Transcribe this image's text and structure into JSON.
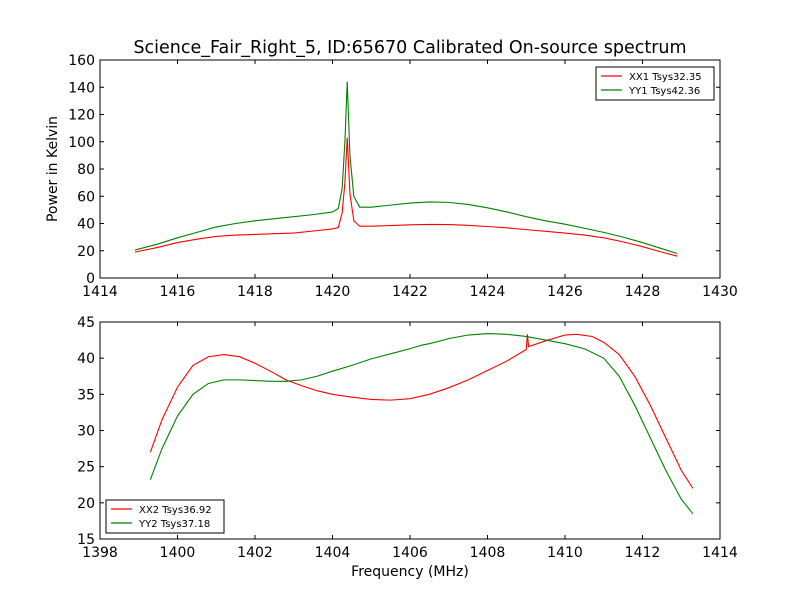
{
  "title": "Science_Fair_Right_5, ID:65670 Calibrated On-source spectrum",
  "chart_data": [
    {
      "type": "line",
      "ylabel": "Power in Kelvin",
      "xlabel": "",
      "xlim": [
        1414,
        1430
      ],
      "ylim": [
        0,
        160
      ],
      "xticks": [
        1414,
        1416,
        1418,
        1420,
        1422,
        1424,
        1426,
        1428,
        1430
      ],
      "yticks": [
        0,
        20,
        40,
        60,
        80,
        100,
        120,
        140,
        160
      ],
      "grid": false,
      "legend_position": "top-right",
      "series": [
        {
          "name": "XX1 Tsys32.35",
          "color": "#ff0000",
          "points": [
            [
              1414.9,
              19
            ],
            [
              1415.5,
              22.5
            ],
            [
              1416,
              26
            ],
            [
              1416.5,
              28.5
            ],
            [
              1417,
              30.5
            ],
            [
              1417.5,
              31.5
            ],
            [
              1418,
              32
            ],
            [
              1418.5,
              32.5
            ],
            [
              1419,
              33
            ],
            [
              1419.5,
              34.5
            ],
            [
              1420,
              36
            ],
            [
              1420.15,
              37
            ],
            [
              1420.25,
              48
            ],
            [
              1420.32,
              70
            ],
            [
              1420.38,
              103
            ],
            [
              1420.45,
              62
            ],
            [
              1420.55,
              42
            ],
            [
              1420.7,
              38
            ],
            [
              1421,
              38
            ],
            [
              1421.5,
              38.5
            ],
            [
              1422,
              39
            ],
            [
              1422.5,
              39.3
            ],
            [
              1423,
              39.2
            ],
            [
              1423.5,
              38.7
            ],
            [
              1424,
              37.8
            ],
            [
              1424.5,
              36.8
            ],
            [
              1425,
              35.5
            ],
            [
              1425.5,
              34.3
            ],
            [
              1426,
              33
            ],
            [
              1426.5,
              31.5
            ],
            [
              1427,
              29.5
            ],
            [
              1427.5,
              26.5
            ],
            [
              1428,
              23
            ],
            [
              1428.5,
              19
            ],
            [
              1428.9,
              16
            ]
          ]
        },
        {
          "name": "YY1 Tsys42.36",
          "color": "#008000",
          "points": [
            [
              1414.9,
              20.5
            ],
            [
              1415.5,
              25
            ],
            [
              1416,
              29.5
            ],
            [
              1416.5,
              33.5
            ],
            [
              1417,
              37.5
            ],
            [
              1417.5,
              40
            ],
            [
              1418,
              42
            ],
            [
              1418.5,
              43.5
            ],
            [
              1419,
              45
            ],
            [
              1419.5,
              46.5
            ],
            [
              1420,
              48.5
            ],
            [
              1420.15,
              51
            ],
            [
              1420.25,
              66
            ],
            [
              1420.32,
              100
            ],
            [
              1420.38,
              144
            ],
            [
              1420.45,
              90
            ],
            [
              1420.55,
              60
            ],
            [
              1420.7,
              52
            ],
            [
              1421,
              52
            ],
            [
              1421.5,
              53.5
            ],
            [
              1422,
              55
            ],
            [
              1422.5,
              55.8
            ],
            [
              1423,
              55.5
            ],
            [
              1423.5,
              54
            ],
            [
              1424,
              51.5
            ],
            [
              1424.5,
              48.5
            ],
            [
              1425,
              45
            ],
            [
              1425.5,
              42
            ],
            [
              1426,
              39.5
            ],
            [
              1426.5,
              36.5
            ],
            [
              1427,
              33.5
            ],
            [
              1427.5,
              30
            ],
            [
              1428,
              26
            ],
            [
              1428.5,
              21.5
            ],
            [
              1428.9,
              18
            ]
          ]
        }
      ]
    },
    {
      "type": "line",
      "ylabel": "",
      "xlabel": "Frequency (MHz)",
      "xlim": [
        1398,
        1414
      ],
      "ylim": [
        15,
        45
      ],
      "xticks": [
        1398,
        1400,
        1402,
        1404,
        1406,
        1408,
        1410,
        1412,
        1414
      ],
      "yticks": [
        15,
        20,
        25,
        30,
        35,
        40,
        45
      ],
      "grid": false,
      "legend_position": "bottom-left",
      "series": [
        {
          "name": "XX2 Tsys36.92",
          "color": "#ff0000",
          "points": [
            [
              1399.3,
              27
            ],
            [
              1399.6,
              31.5
            ],
            [
              1400,
              36
            ],
            [
              1400.4,
              39
            ],
            [
              1400.8,
              40.2
            ],
            [
              1401.2,
              40.5
            ],
            [
              1401.6,
              40.2
            ],
            [
              1402,
              39.3
            ],
            [
              1402.4,
              38.2
            ],
            [
              1402.8,
              37
            ],
            [
              1403.2,
              36.2
            ],
            [
              1403.6,
              35.5
            ],
            [
              1404,
              35
            ],
            [
              1404.5,
              34.6
            ],
            [
              1405,
              34.3
            ],
            [
              1405.5,
              34.2
            ],
            [
              1406,
              34.4
            ],
            [
              1406.5,
              35
            ],
            [
              1407,
              35.9
            ],
            [
              1407.5,
              37
            ],
            [
              1408,
              38.3
            ],
            [
              1408.5,
              39.6
            ],
            [
              1409,
              41.2
            ],
            [
              1409.03,
              43.3
            ],
            [
              1409.06,
              41.6
            ],
            [
              1409.5,
              42.4
            ],
            [
              1410,
              43.2
            ],
            [
              1410.3,
              43.3
            ],
            [
              1410.7,
              43
            ],
            [
              1411,
              42.2
            ],
            [
              1411.4,
              40.5
            ],
            [
              1411.8,
              37.5
            ],
            [
              1412.2,
              33.5
            ],
            [
              1412.6,
              29
            ],
            [
              1413,
              24.5
            ],
            [
              1413.3,
              22
            ]
          ]
        },
        {
          "name": "YY2 Tsys37.18",
          "color": "#008000",
          "points": [
            [
              1399.3,
              23.2
            ],
            [
              1399.6,
              27.5
            ],
            [
              1400,
              32
            ],
            [
              1400.4,
              35
            ],
            [
              1400.8,
              36.5
            ],
            [
              1401.2,
              37
            ],
            [
              1401.6,
              37
            ],
            [
              1402,
              36.9
            ],
            [
              1402.4,
              36.8
            ],
            [
              1402.8,
              36.8
            ],
            [
              1403.2,
              37
            ],
            [
              1403.6,
              37.5
            ],
            [
              1404,
              38.2
            ],
            [
              1404.5,
              39
            ],
            [
              1405,
              39.9
            ],
            [
              1405.5,
              40.6
            ],
            [
              1406,
              41.3
            ],
            [
              1406.3,
              41.8
            ],
            [
              1406.5,
              42
            ],
            [
              1407,
              42.7
            ],
            [
              1407.5,
              43.2
            ],
            [
              1408,
              43.4
            ],
            [
              1408.5,
              43.3
            ],
            [
              1409,
              43
            ],
            [
              1409.5,
              42.5
            ],
            [
              1410,
              42
            ],
            [
              1410.5,
              41.3
            ],
            [
              1411,
              40
            ],
            [
              1411.4,
              37.5
            ],
            [
              1411.8,
              33.5
            ],
            [
              1412.2,
              29
            ],
            [
              1412.6,
              24.5
            ],
            [
              1413,
              20.5
            ],
            [
              1413.3,
              18.5
            ]
          ]
        }
      ]
    }
  ]
}
